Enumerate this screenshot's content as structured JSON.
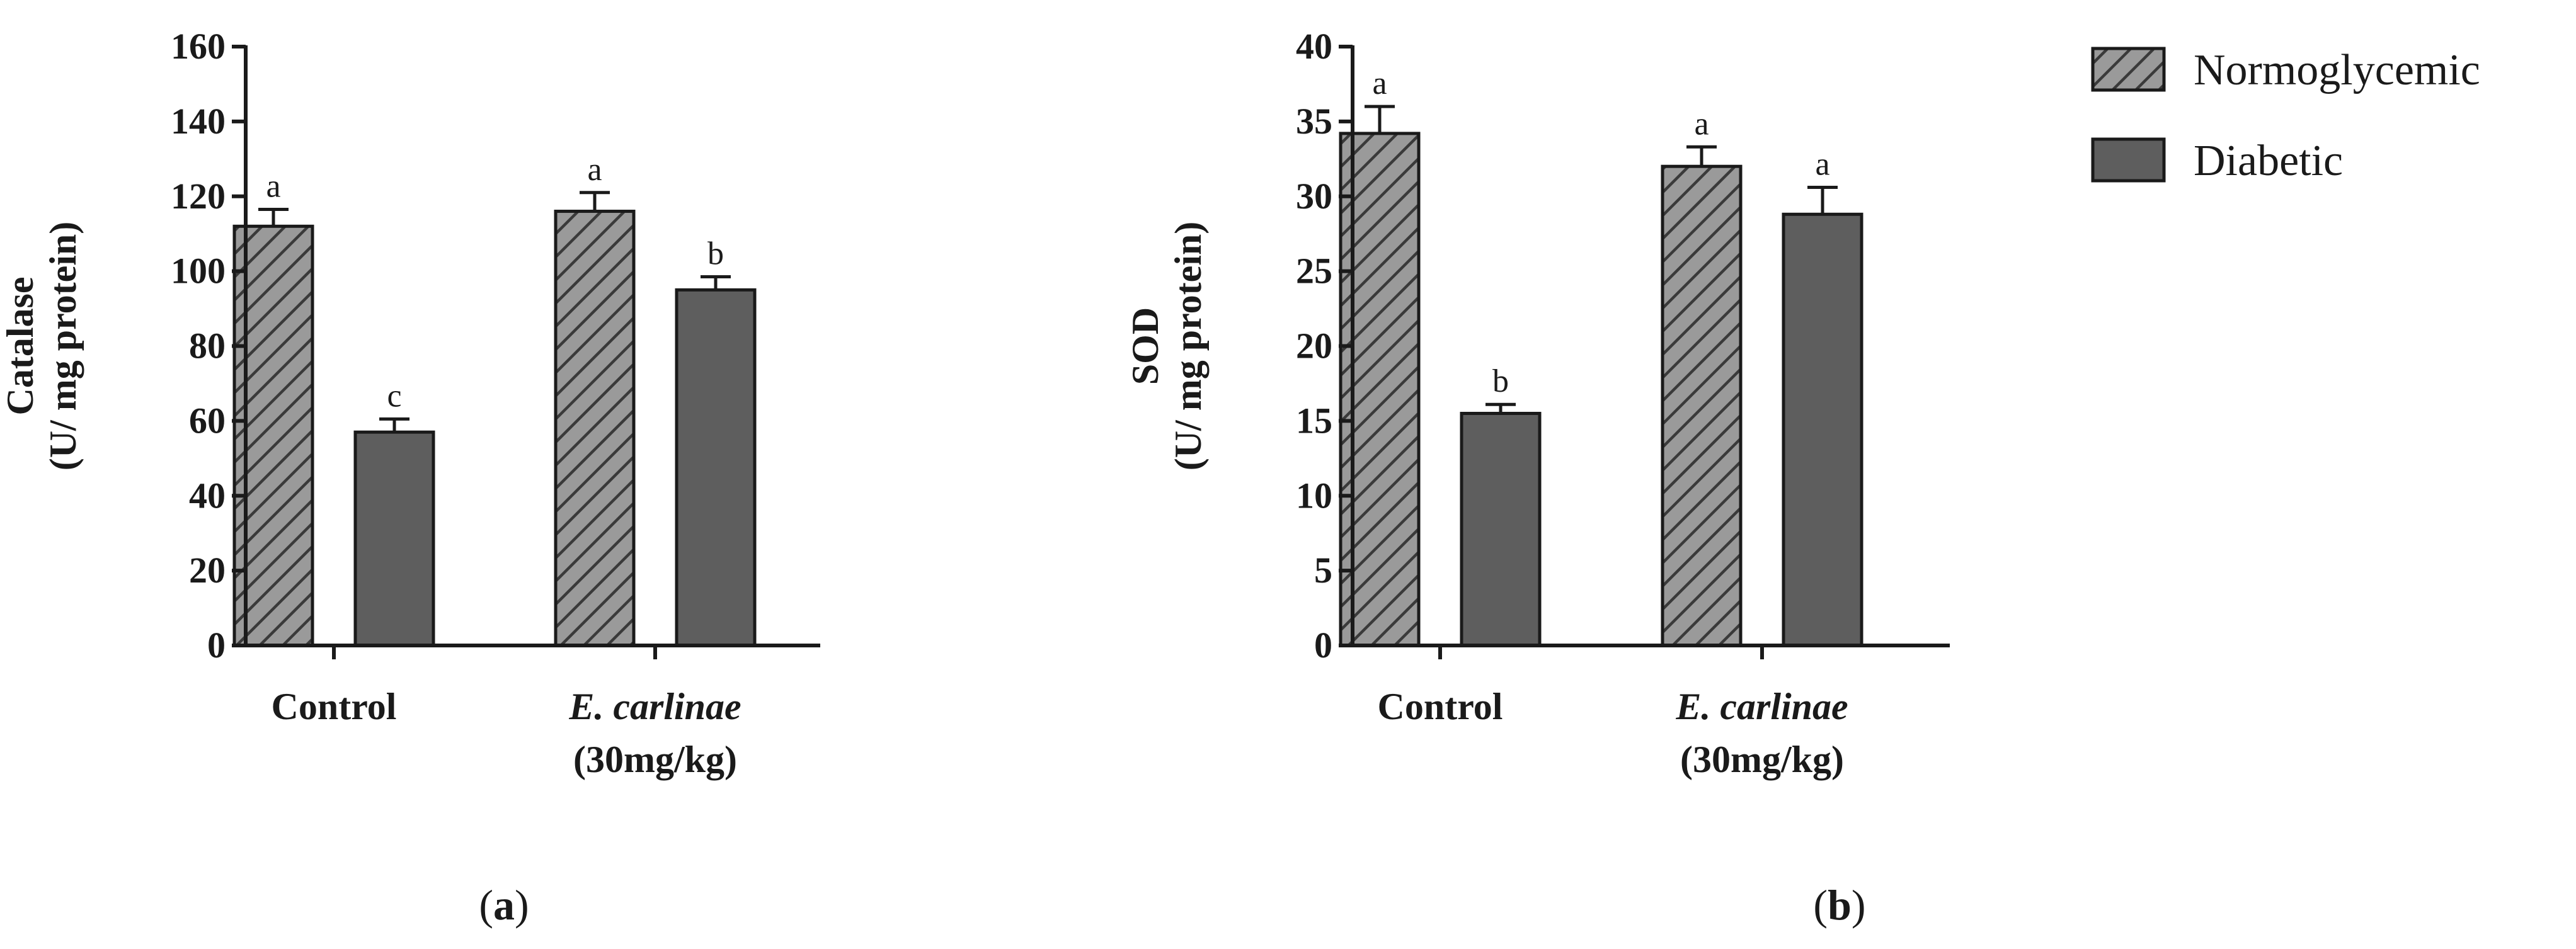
{
  "chart_data": [
    {
      "type": "bar",
      "panel_label": "(a)",
      "panel_letter": "a",
      "ylabel_line1": "Catalase",
      "ylabel_line2": "(U/ mg protein)",
      "ylim": [
        0,
        160
      ],
      "yticks": [
        0,
        20,
        40,
        60,
        80,
        100,
        120,
        140,
        160
      ],
      "categories": [
        {
          "line1": "Control",
          "line1_italic": false,
          "line2": ""
        },
        {
          "line1": "E. carlinae",
          "line1_italic": true,
          "line2": "(30mg/kg)"
        }
      ],
      "series": [
        {
          "name": "Normoglycemic",
          "values": [
            112,
            116
          ],
          "errors": [
            4.5,
            5
          ],
          "sig": [
            "a",
            "a"
          ]
        },
        {
          "name": "Diabetic",
          "values": [
            57,
            95
          ],
          "errors": [
            3.5,
            3.5
          ],
          "sig": [
            "c",
            "b"
          ]
        }
      ]
    },
    {
      "type": "bar",
      "panel_label": "(b)",
      "panel_letter": "b",
      "ylabel_line1": "SOD",
      "ylabel_line2": "(U/ mg protein)",
      "ylim": [
        0,
        40
      ],
      "yticks": [
        0,
        5,
        10,
        15,
        20,
        25,
        30,
        35,
        40
      ],
      "categories": [
        {
          "line1": "Control",
          "line1_italic": false,
          "line2": ""
        },
        {
          "line1": "E. carlinae",
          "line1_italic": true,
          "line2": "(30mg/kg)"
        }
      ],
      "series": [
        {
          "name": "Normoglycemic",
          "values": [
            34.2,
            32
          ],
          "errors": [
            1.8,
            1.3
          ],
          "sig": [
            "a",
            "a"
          ]
        },
        {
          "name": "Diabetic",
          "values": [
            15.5,
            28.8
          ],
          "errors": [
            0.6,
            1.8
          ],
          "sig": [
            "b",
            "a"
          ]
        }
      ]
    }
  ],
  "legend": {
    "items": [
      {
        "label": "Normoglycemic",
        "style": "hatched"
      },
      {
        "label": "Diabetic",
        "style": "solid"
      }
    ]
  },
  "colors": {
    "normoglycemic_fill": "#9a9a9a",
    "hatch_line": "#3a3a3a",
    "diabetic_fill": "#5e5e5e",
    "axis": "#1a1a1a"
  }
}
